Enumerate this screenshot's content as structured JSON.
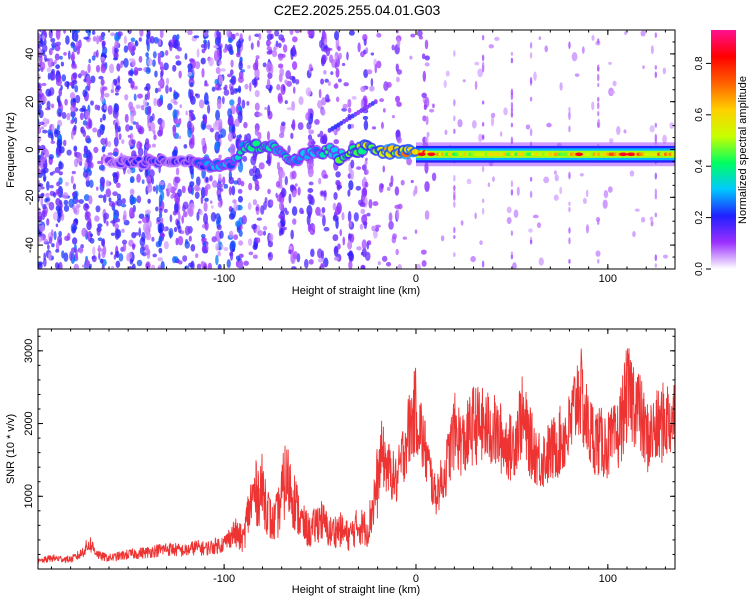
{
  "title": "C2E2.2025.255.04.01.G03",
  "chart_data": [
    {
      "type": "heatmap",
      "xlabel": "Height of straight line (km)",
      "ylabel": "Frequency (Hz)",
      "xlim": [
        -197,
        135
      ],
      "ylim": [
        -50,
        50
      ],
      "x_ticks": [
        -100,
        0,
        100
      ],
      "y_ticks": [
        -40,
        -20,
        0,
        20,
        40
      ],
      "x_tick_labels": [
        "-100",
        "0",
        "100"
      ],
      "y_tick_labels": [
        "-40",
        "-20",
        "0",
        "20",
        "40"
      ],
      "colorbar": {
        "label": "Normalized spectral amplitude",
        "range": [
          0,
          0.93
        ],
        "ticks": [
          0,
          0.2,
          0.4,
          0.6,
          0.8
        ],
        "tick_labels": [
          "0.0",
          "0.2",
          "0.4",
          "0.6",
          "0.8"
        ],
        "colors": [
          "#ffffff",
          "#9b30ff",
          "#2020ff",
          "#00c8ff",
          "#00ff60",
          "#c8ff00",
          "#ffd000",
          "#ff6000",
          "#ff0000",
          "#ff1090"
        ]
      },
      "ridge": {
        "x": [
          -160,
          -140,
          -120,
          -105,
          -95,
          -90,
          -85,
          -80,
          -75,
          -70,
          -65,
          -60,
          -55,
          -50,
          -45,
          -40,
          -35,
          -30,
          -25,
          -20,
          -15,
          -10,
          -5,
          0,
          5,
          10,
          20,
          40,
          60,
          80,
          100,
          120,
          135
        ],
        "y": [
          -6,
          -5,
          -5,
          -7,
          -5,
          1,
          2,
          0,
          1,
          -2,
          -5,
          -3,
          -1,
          -2,
          0,
          -3,
          -1,
          0,
          2,
          0,
          -1,
          0,
          -1,
          -1,
          -1,
          -2,
          -2,
          -2,
          -2,
          -2,
          -2,
          -2,
          -2
        ],
        "amplitude": [
          0.15,
          0.2,
          0.2,
          0.3,
          0.3,
          0.35,
          0.4,
          0.4,
          0.35,
          0.3,
          0.35,
          0.3,
          0.3,
          0.35,
          0.4,
          0.4,
          0.45,
          0.5,
          0.5,
          0.55,
          0.6,
          0.6,
          0.65,
          0.7,
          0.7,
          0.6,
          0.55,
          0.55,
          0.55,
          0.6,
          0.65,
          0.7,
          0.6
        ]
      }
    },
    {
      "type": "line",
      "xlabel": "Height of straight line (km)",
      "ylabel": "SNR (10 * v/v)",
      "xlim": [
        -197,
        135
      ],
      "ylim": [
        0,
        3300
      ],
      "x_ticks": [
        -100,
        0,
        100
      ],
      "y_ticks": [
        1000,
        2000,
        3000
      ],
      "x_tick_labels": [
        "-100",
        "0",
        "100"
      ],
      "y_tick_labels": [
        "1000",
        "2000",
        "3000"
      ],
      "color": "#ee3333",
      "series": [
        {
          "x": [
            -197,
            -190,
            -180,
            -175,
            -170,
            -165,
            -160,
            -150,
            -140,
            -130,
            -120,
            -115,
            -110,
            -100,
            -95,
            -90,
            -88,
            -85,
            -80,
            -75,
            -72,
            -68,
            -65,
            -60,
            -55,
            -50,
            -45,
            -40,
            -35,
            -30,
            -25,
            -20,
            -18,
            -15,
            -10,
            -5,
            0,
            5,
            10,
            15,
            20,
            25,
            30,
            40,
            50,
            55,
            60,
            65,
            70,
            80,
            85,
            90,
            95,
            100,
            105,
            110,
            115,
            120,
            125,
            130,
            135
          ],
          "y": [
            100,
            150,
            130,
            200,
            350,
            180,
            150,
            200,
            230,
            280,
            250,
            300,
            280,
            350,
            500,
            400,
            700,
            1000,
            1100,
            600,
            750,
            1250,
            1100,
            650,
            500,
            700,
            500,
            550,
            450,
            600,
            550,
            1200,
            1600,
            1400,
            1200,
            1800,
            2200,
            1600,
            1000,
            1300,
            1900,
            1700,
            2000,
            1900,
            1650,
            2100,
            1700,
            1500,
            1600,
            1900,
            2500,
            1900,
            1750,
            1700,
            1800,
            2400,
            2300,
            1800,
            1900,
            2050,
            2100
          ]
        }
      ]
    }
  ]
}
